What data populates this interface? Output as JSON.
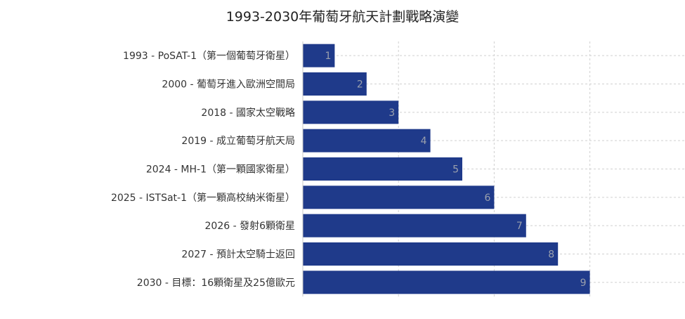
{
  "chart_data": {
    "type": "bar",
    "orientation": "horizontal",
    "title": "1993-2030年葡萄牙航天計劃戰略演變",
    "categories": [
      "1993 - PoSAT-1（第一個葡萄牙衛星）",
      "2000 - 葡萄牙進入歐洲空間局",
      "2018 - 國家太空戰略",
      "2019 - 成立葡萄牙航天局",
      "2024 - MH-1（第一顆國家衛星）",
      "2025 - ISTSat-1（第一顆高校納米衛星）",
      "2026 - 發射6顆衛星",
      "2027 - 預計太空騎士返回",
      "2030 - 目標：16顆衛星及25億歐元"
    ],
    "values": [
      1,
      2,
      3,
      4,
      5,
      6,
      7,
      8,
      9
    ],
    "xlim": [
      0,
      12
    ],
    "grid": true,
    "legend": "none",
    "bar_color": "#1f3a8a"
  }
}
